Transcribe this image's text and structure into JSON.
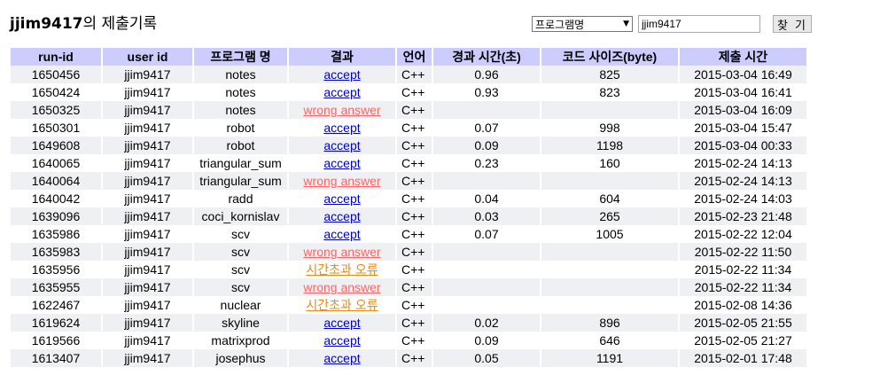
{
  "header": {
    "user": "jjim9417",
    "suffix": "의 제출기록"
  },
  "search": {
    "select_value": "프로그램명",
    "input_value": "jjim9417",
    "button_label": "찾 기"
  },
  "table": {
    "columns": [
      "run-id",
      "user id",
      "프로그램 명",
      "결과",
      "언어",
      "경과 시간(초)",
      "코드 사이즈(byte)",
      "제출 시간"
    ],
    "rows": [
      {
        "run_id": "1650456",
        "user": "jjim9417",
        "program": "notes",
        "result": "accept",
        "status": "accept",
        "lang": "C++",
        "time": "0.96",
        "size": "825",
        "submitted": "2015-03-04 16:49"
      },
      {
        "run_id": "1650424",
        "user": "jjim9417",
        "program": "notes",
        "result": "accept",
        "status": "accept",
        "lang": "C++",
        "time": "0.93",
        "size": "823",
        "submitted": "2015-03-04 16:41"
      },
      {
        "run_id": "1650325",
        "user": "jjim9417",
        "program": "notes",
        "result": "wrong answer",
        "status": "wrong",
        "lang": "C++",
        "time": "",
        "size": "",
        "submitted": "2015-03-04 16:09"
      },
      {
        "run_id": "1650301",
        "user": "jjim9417",
        "program": "robot",
        "result": "accept",
        "status": "accept",
        "lang": "C++",
        "time": "0.07",
        "size": "998",
        "submitted": "2015-03-04 15:47"
      },
      {
        "run_id": "1649608",
        "user": "jjim9417",
        "program": "robot",
        "result": "accept",
        "status": "accept",
        "lang": "C++",
        "time": "0.09",
        "size": "1198",
        "submitted": "2015-03-04 00:33"
      },
      {
        "run_id": "1640065",
        "user": "jjim9417",
        "program": "triangular_sum",
        "result": "accept",
        "status": "accept",
        "lang": "C++",
        "time": "0.23",
        "size": "160",
        "submitted": "2015-02-24 14:13"
      },
      {
        "run_id": "1640064",
        "user": "jjim9417",
        "program": "triangular_sum",
        "result": "wrong answer",
        "status": "wrong",
        "lang": "C++",
        "time": "",
        "size": "",
        "submitted": "2015-02-24 14:13"
      },
      {
        "run_id": "1640042",
        "user": "jjim9417",
        "program": "radd",
        "result": "accept",
        "status": "accept",
        "lang": "C++",
        "time": "0.04",
        "size": "604",
        "submitted": "2015-02-24 14:03"
      },
      {
        "run_id": "1639096",
        "user": "jjim9417",
        "program": "coci_kornislav",
        "result": "accept",
        "status": "accept",
        "lang": "C++",
        "time": "0.03",
        "size": "265",
        "submitted": "2015-02-23 21:48"
      },
      {
        "run_id": "1635986",
        "user": "jjim9417",
        "program": "scv",
        "result": "accept",
        "status": "accept",
        "lang": "C++",
        "time": "0.07",
        "size": "1005",
        "submitted": "2015-02-22 12:04"
      },
      {
        "run_id": "1635983",
        "user": "jjim9417",
        "program": "scv",
        "result": "wrong answer",
        "status": "wrong",
        "lang": "C++",
        "time": "",
        "size": "",
        "submitted": "2015-02-22 11:50"
      },
      {
        "run_id": "1635956",
        "user": "jjim9417",
        "program": "scv",
        "result": "시간초과 오류",
        "status": "timeout",
        "lang": "C++",
        "time": "",
        "size": "",
        "submitted": "2015-02-22 11:34"
      },
      {
        "run_id": "1635955",
        "user": "jjim9417",
        "program": "scv",
        "result": "wrong answer",
        "status": "wrong",
        "lang": "C++",
        "time": "",
        "size": "",
        "submitted": "2015-02-22 11:34"
      },
      {
        "run_id": "1622467",
        "user": "jjim9417",
        "program": "nuclear",
        "result": "시간초과 오류",
        "status": "timeout",
        "lang": "C++",
        "time": "",
        "size": "",
        "submitted": "2015-02-08 14:36"
      },
      {
        "run_id": "1619624",
        "user": "jjim9417",
        "program": "skyline",
        "result": "accept",
        "status": "accept",
        "lang": "C++",
        "time": "0.02",
        "size": "896",
        "submitted": "2015-02-05 21:55"
      },
      {
        "run_id": "1619566",
        "user": "jjim9417",
        "program": "matrixprod",
        "result": "accept",
        "status": "accept",
        "lang": "C++",
        "time": "0.09",
        "size": "646",
        "submitted": "2015-02-05 21:27"
      },
      {
        "run_id": "1613407",
        "user": "jjim9417",
        "program": "josephus",
        "result": "accept",
        "status": "accept",
        "lang": "C++",
        "time": "0.05",
        "size": "1191",
        "submitted": "2015-02-01 17:48"
      }
    ]
  }
}
